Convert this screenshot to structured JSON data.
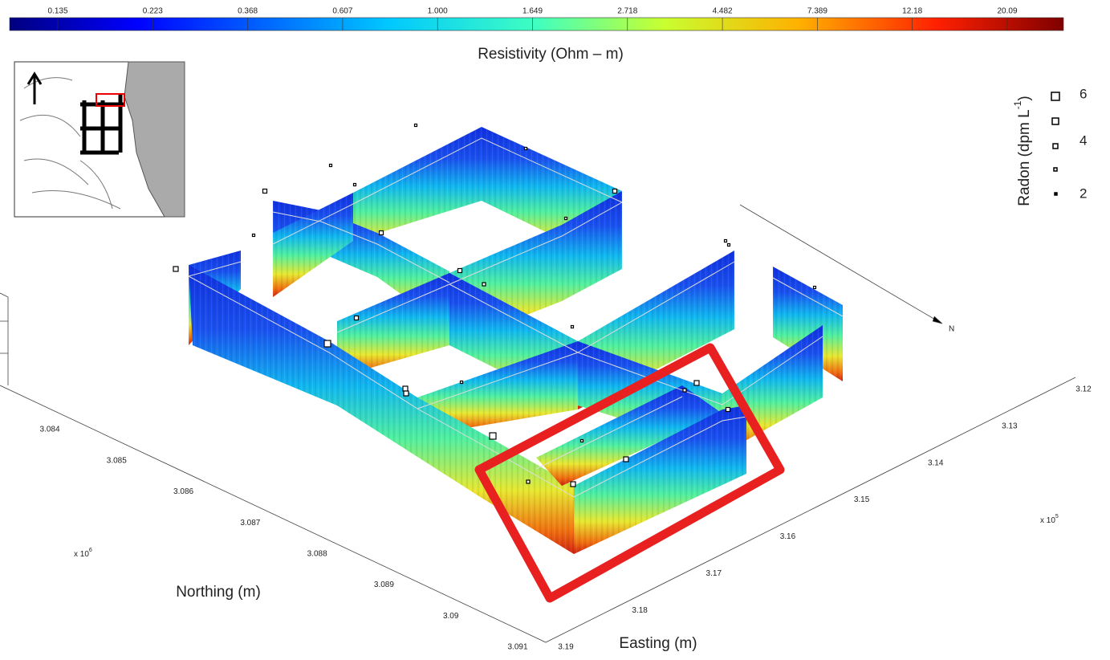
{
  "colorbar": {
    "title": "Resistivity (Ohm – m)",
    "ticks": [
      "0.135",
      "0.223",
      "0.368",
      "0.607",
      "1.000",
      "1.649",
      "2.718",
      "4.482",
      "7.389",
      "12.18",
      "20.09"
    ]
  },
  "legend": {
    "title": "Radon (dpm L",
    "title_superscript": "-1",
    "title_end": ")",
    "labels": [
      "6",
      "4",
      "2"
    ]
  },
  "northing_axis": {
    "title": "Northing (m)",
    "ticks": [
      "3.084",
      "3.085",
      "3.086",
      "3.087",
      "3.088",
      "3.089",
      "3.09",
      "3.091"
    ],
    "multiplier": "x 10",
    "multiplier_exponent": "6"
  },
  "easting_axis": {
    "title": "Easting (m)",
    "ticks": [
      "3.12",
      "3.13",
      "3.14",
      "3.15",
      "3.16",
      "3.17",
      "3.18",
      "3.19"
    ],
    "multiplier": "x 10",
    "multiplier_exponent": "5"
  },
  "compass": "N"
}
